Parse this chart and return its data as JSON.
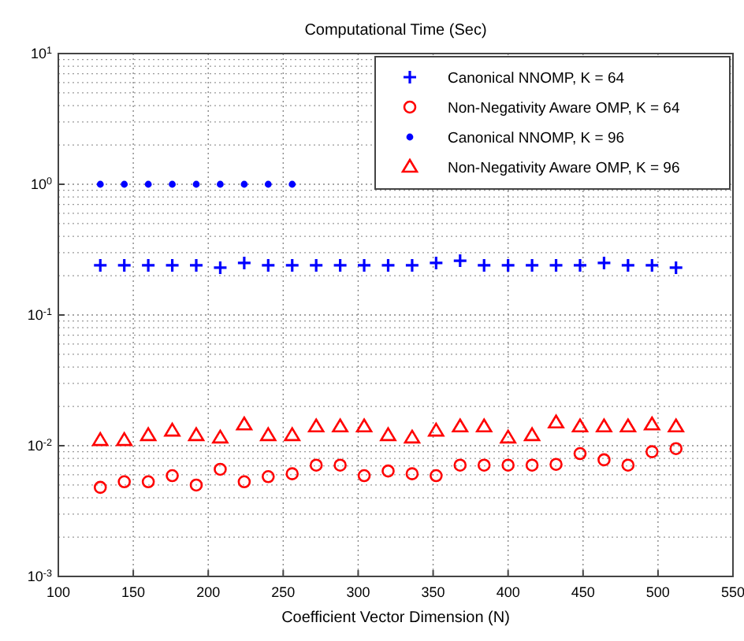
{
  "chart_data": {
    "type": "scatter",
    "title": "Computational Time (Sec)",
    "xlabel": "Coefficient Vector Dimension (N)",
    "x": [
      128,
      144,
      160,
      176,
      192,
      208,
      224,
      240,
      256,
      272,
      288,
      304,
      320,
      336,
      352,
      368,
      384,
      400,
      416,
      432,
      448,
      464,
      480,
      496,
      512
    ],
    "xlim": [
      100,
      550
    ],
    "xticks": [
      100,
      150,
      200,
      250,
      300,
      350,
      400,
      450,
      500,
      550
    ],
    "ylim": [
      0.001,
      10
    ],
    "yticks": [
      {
        "value": 0.001,
        "label": "10$^{-3}$"
      },
      {
        "value": 0.01,
        "label": "10$^{-2}$"
      },
      {
        "value": 0.1,
        "label": "10$^{-1}$"
      },
      {
        "value": 1,
        "label": "10$^{0}$"
      },
      {
        "value": 10,
        "label": "10$^{1}$"
      }
    ],
    "log": "y",
    "grid": true,
    "legend": "top right",
    "series": [
      {
        "name": "Canonical NNOMP, K = 64",
        "color": "#0000ff",
        "marker": "cross",
        "values": [
          0.24,
          0.24,
          0.24,
          0.24,
          0.24,
          0.23,
          0.25,
          0.24,
          0.24,
          0.24,
          0.24,
          0.24,
          0.24,
          0.24,
          0.25,
          0.26,
          0.24,
          0.24,
          0.24,
          0.24,
          0.24,
          0.25,
          0.24,
          0.24,
          0.23
        ]
      },
      {
        "name": "Non-Negativity Aware OMP, K = 64",
        "color": "#ff0000",
        "marker": "circle",
        "values": [
          0.0048,
          0.0053,
          0.0053,
          0.0059,
          0.005,
          0.0066,
          0.0053,
          0.0058,
          0.0061,
          0.0071,
          0.0071,
          0.0059,
          0.0064,
          0.0061,
          0.0059,
          0.0071,
          0.0071,
          0.0071,
          0.0071,
          0.0072,
          0.0087,
          0.0078,
          0.0071,
          0.009,
          0.0095
        ]
      },
      {
        "name": "Canonical NNOMP, K = 96",
        "color": "#0000ff",
        "marker": "dot",
        "values": [
          1,
          1,
          1,
          1,
          1,
          1,
          1,
          1,
          1,
          null,
          null,
          null,
          null,
          null,
          null,
          null,
          null,
          null,
          null,
          null,
          null,
          null,
          null,
          null,
          null
        ]
      },
      {
        "name": "Non-Negativity Aware OMP, K = 96",
        "color": "#ff0000",
        "marker": "triangle",
        "values": [
          0.011,
          0.011,
          0.012,
          0.013,
          0.012,
          0.0115,
          0.0145,
          0.012,
          0.012,
          0.014,
          0.014,
          0.014,
          0.012,
          0.0115,
          0.013,
          0.014,
          0.014,
          0.0115,
          0.012,
          0.015,
          0.014,
          0.014,
          0.014,
          0.0145,
          0.014
        ]
      }
    ]
  }
}
